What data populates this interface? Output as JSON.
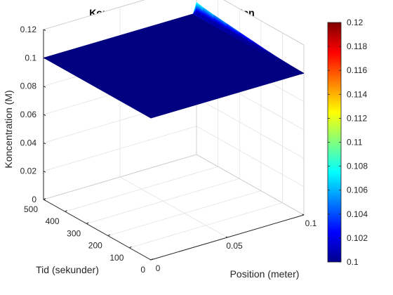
{
  "chart_data": {
    "type": "surface",
    "title": "Koncentration Over Tid og Position",
    "xlabel": "Position (meter)",
    "ylabel": "Tid (sekunder)",
    "zlabel": "Koncentration (M)",
    "xlim": [
      0,
      0.1
    ],
    "ylim": [
      0,
      500
    ],
    "zlim": [
      0,
      0.12
    ],
    "x_ticks": [
      "0",
      "0.05",
      "0.1"
    ],
    "y_ticks": [
      "0",
      "100",
      "200",
      "300",
      "400",
      "500"
    ],
    "z_ticks": [
      "0",
      "0.02",
      "0.04",
      "0.06",
      "0.08",
      "0.1",
      "0.12"
    ],
    "colormap": "jet",
    "clim": [
      0.1,
      0.12
    ],
    "colorbar_ticks": [
      "0.1",
      "0.102",
      "0.104",
      "0.106",
      "0.108",
      "0.11",
      "0.112",
      "0.114",
      "0.116",
      "0.118",
      "0.12"
    ],
    "grid": true,
    "surface": {
      "base_concentration": 0.1,
      "edge_x": 0.1,
      "edge_profile_t": [
        0,
        60,
        120,
        180,
        240,
        300,
        360,
        420,
        470,
        490,
        500
      ],
      "edge_profile_c": [
        0.1,
        0.1003,
        0.1008,
        0.1015,
        0.1025,
        0.1035,
        0.1045,
        0.1055,
        0.1065,
        0.1072,
        0.1075
      ]
    }
  }
}
